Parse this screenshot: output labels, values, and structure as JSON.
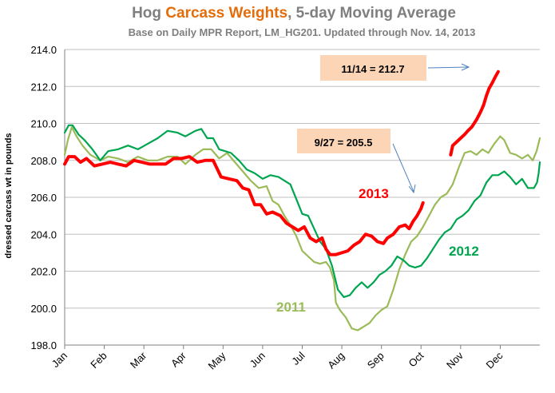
{
  "title": {
    "part1": "Hog ",
    "accent": "Carcass Weights",
    "part2": ", 5-day Moving Average",
    "accent_color": "#e46c0a"
  },
  "subtitle": "Base on Daily MPR Report, LM_HG201.  Updated through Nov. 14, 2013",
  "chart_data": {
    "type": "line",
    "title": "Hog Carcass Weights, 5-day Moving Average",
    "subtitle": "Base on Daily MPR Report, LM_HG201.  Updated through Nov. 14, 2013",
    "xlabel": "",
    "ylabel": "dressed carcass  wt in pounds",
    "ylim": [
      198.0,
      214.0
    ],
    "xlim": [
      0,
      12
    ],
    "grid": true,
    "yticks": [
      "214.0",
      "212.0",
      "210.0",
      "208.0",
      "206.0",
      "204.0",
      "202.0",
      "200.0",
      "198.0"
    ],
    "xticks": [
      "Jan",
      "Feb",
      "Mar",
      "Apr",
      "May",
      "Jun",
      "Jul",
      "Aug",
      "Sep",
      "Oct",
      "Nov",
      "Dec"
    ],
    "series": [
      {
        "name": "2011",
        "color": "#9bbb59",
        "points": [
          [
            0.0,
            208.3
          ],
          [
            0.08,
            209.1
          ],
          [
            0.18,
            209.8
          ],
          [
            0.3,
            209.3
          ],
          [
            0.45,
            208.8
          ],
          [
            0.65,
            208.3
          ],
          [
            0.9,
            208.0
          ],
          [
            1.1,
            208.2
          ],
          [
            1.35,
            208.1
          ],
          [
            1.6,
            207.9
          ],
          [
            1.85,
            208.2
          ],
          [
            2.1,
            208.0
          ],
          [
            2.35,
            208.0
          ],
          [
            2.6,
            208.2
          ],
          [
            2.85,
            208.2
          ],
          [
            3.05,
            207.8
          ],
          [
            3.3,
            208.3
          ],
          [
            3.5,
            208.6
          ],
          [
            3.7,
            208.6
          ],
          [
            3.9,
            208.1
          ],
          [
            4.1,
            208.4
          ],
          [
            4.3,
            207.9
          ],
          [
            4.5,
            207.4
          ],
          [
            4.7,
            206.9
          ],
          [
            4.9,
            206.5
          ],
          [
            5.1,
            206.6
          ],
          [
            5.25,
            205.8
          ],
          [
            5.4,
            205.6
          ],
          [
            5.55,
            205.0
          ],
          [
            5.7,
            204.5
          ],
          [
            5.85,
            203.9
          ],
          [
            6.0,
            203.1
          ],
          [
            6.15,
            202.8
          ],
          [
            6.3,
            202.5
          ],
          [
            6.45,
            202.4
          ],
          [
            6.6,
            202.5
          ],
          [
            6.7,
            202.2
          ],
          [
            6.8,
            201.5
          ],
          [
            6.85,
            200.3
          ],
          [
            6.95,
            199.9
          ],
          [
            7.1,
            199.5
          ],
          [
            7.25,
            198.9
          ],
          [
            7.4,
            198.8
          ],
          [
            7.55,
            199.0
          ],
          [
            7.7,
            199.2
          ],
          [
            7.85,
            199.6
          ],
          [
            8.0,
            199.9
          ],
          [
            8.15,
            200.1
          ],
          [
            8.3,
            201.0
          ],
          [
            8.45,
            202.1
          ],
          [
            8.6,
            202.9
          ],
          [
            8.75,
            203.6
          ],
          [
            8.9,
            203.9
          ],
          [
            9.05,
            204.4
          ],
          [
            9.2,
            205.0
          ],
          [
            9.35,
            205.6
          ],
          [
            9.5,
            206.0
          ],
          [
            9.65,
            206.2
          ],
          [
            9.8,
            206.7
          ],
          [
            9.95,
            207.6
          ],
          [
            10.1,
            208.4
          ],
          [
            10.25,
            208.5
          ],
          [
            10.4,
            208.3
          ],
          [
            10.55,
            208.6
          ],
          [
            10.7,
            208.4
          ],
          [
            10.85,
            208.9
          ],
          [
            11.0,
            209.3
          ],
          [
            11.1,
            209.1
          ],
          [
            11.25,
            208.4
          ],
          [
            11.4,
            208.3
          ],
          [
            11.55,
            208.1
          ],
          [
            11.7,
            208.3
          ],
          [
            11.82,
            208.0
          ],
          [
            11.92,
            208.5
          ],
          [
            12.0,
            209.2
          ]
        ]
      },
      {
        "name": "2012",
        "color": "#00a550",
        "points": [
          [
            0.0,
            209.5
          ],
          [
            0.1,
            209.9
          ],
          [
            0.2,
            209.9
          ],
          [
            0.35,
            209.4
          ],
          [
            0.5,
            209.1
          ],
          [
            0.7,
            208.6
          ],
          [
            0.9,
            208.0
          ],
          [
            1.1,
            208.5
          ],
          [
            1.35,
            208.6
          ],
          [
            1.6,
            208.8
          ],
          [
            1.85,
            208.6
          ],
          [
            2.1,
            208.9
          ],
          [
            2.35,
            209.2
          ],
          [
            2.6,
            209.6
          ],
          [
            2.85,
            209.5
          ],
          [
            3.05,
            209.3
          ],
          [
            3.3,
            209.6
          ],
          [
            3.45,
            209.7
          ],
          [
            3.6,
            209.2
          ],
          [
            3.75,
            209.2
          ],
          [
            3.9,
            208.6
          ],
          [
            4.05,
            208.5
          ],
          [
            4.2,
            208.4
          ],
          [
            4.4,
            208.0
          ],
          [
            4.6,
            207.5
          ],
          [
            4.8,
            207.3
          ],
          [
            5.0,
            207.0
          ],
          [
            5.2,
            207.2
          ],
          [
            5.4,
            207.1
          ],
          [
            5.55,
            206.9
          ],
          [
            5.7,
            206.7
          ],
          [
            5.85,
            205.9
          ],
          [
            6.0,
            205.1
          ],
          [
            6.15,
            205.0
          ],
          [
            6.3,
            204.3
          ],
          [
            6.45,
            203.6
          ],
          [
            6.6,
            203.2
          ],
          [
            6.75,
            202.3
          ],
          [
            6.9,
            201.0
          ],
          [
            7.05,
            200.6
          ],
          [
            7.2,
            200.7
          ],
          [
            7.35,
            201.1
          ],
          [
            7.5,
            201.4
          ],
          [
            7.65,
            201.1
          ],
          [
            7.8,
            201.4
          ],
          [
            7.95,
            201.8
          ],
          [
            8.1,
            202.0
          ],
          [
            8.25,
            202.3
          ],
          [
            8.4,
            202.8
          ],
          [
            8.55,
            202.6
          ],
          [
            8.7,
            202.3
          ],
          [
            8.85,
            202.2
          ],
          [
            9.0,
            202.3
          ],
          [
            9.15,
            202.7
          ],
          [
            9.3,
            203.2
          ],
          [
            9.45,
            203.7
          ],
          [
            9.6,
            204.1
          ],
          [
            9.75,
            204.3
          ],
          [
            9.9,
            204.8
          ],
          [
            10.05,
            205.0
          ],
          [
            10.2,
            205.3
          ],
          [
            10.35,
            205.8
          ],
          [
            10.5,
            206.1
          ],
          [
            10.65,
            206.8
          ],
          [
            10.8,
            207.2
          ],
          [
            10.95,
            207.2
          ],
          [
            11.1,
            207.4
          ],
          [
            11.25,
            207.1
          ],
          [
            11.4,
            206.7
          ],
          [
            11.55,
            207.0
          ],
          [
            11.7,
            206.5
          ],
          [
            11.85,
            206.5
          ],
          [
            11.93,
            206.8
          ],
          [
            11.97,
            207.3
          ],
          [
            12.0,
            207.9
          ]
        ]
      },
      {
        "name": "2013",
        "color": "#ff0000",
        "segments": [
          [
            [
              0.0,
              207.8
            ],
            [
              0.1,
              208.2
            ],
            [
              0.25,
              208.2
            ],
            [
              0.4,
              207.9
            ],
            [
              0.55,
              208.1
            ],
            [
              0.75,
              207.7
            ],
            [
              0.95,
              207.8
            ],
            [
              1.15,
              207.9
            ],
            [
              1.35,
              207.8
            ],
            [
              1.55,
              207.7
            ],
            [
              1.75,
              208.0
            ],
            [
              1.95,
              207.9
            ],
            [
              2.15,
              207.8
            ],
            [
              2.35,
              207.8
            ],
            [
              2.55,
              207.8
            ],
            [
              2.75,
              208.1
            ],
            [
              2.95,
              208.1
            ],
            [
              3.15,
              208.2
            ],
            [
              3.35,
              207.9
            ],
            [
              3.55,
              208.0
            ],
            [
              3.75,
              208.0
            ],
            [
              3.95,
              207.1
            ],
            [
              4.15,
              207.0
            ],
            [
              4.35,
              206.9
            ],
            [
              4.5,
              206.5
            ],
            [
              4.65,
              206.4
            ],
            [
              4.8,
              205.6
            ],
            [
              4.95,
              205.6
            ],
            [
              5.1,
              205.1
            ],
            [
              5.25,
              205.2
            ],
            [
              5.45,
              205.0
            ],
            [
              5.6,
              204.6
            ],
            [
              5.75,
              204.4
            ],
            [
              5.9,
              204.2
            ],
            [
              6.05,
              204.4
            ],
            [
              6.2,
              203.8
            ],
            [
              6.35,
              203.6
            ],
            [
              6.5,
              203.8
            ],
            [
              6.6,
              203.2
            ],
            [
              6.7,
              202.9
            ],
            [
              6.85,
              202.9
            ],
            [
              7.0,
              203.0
            ],
            [
              7.15,
              203.1
            ],
            [
              7.3,
              203.4
            ],
            [
              7.45,
              203.6
            ],
            [
              7.6,
              204.0
            ],
            [
              7.75,
              203.9
            ],
            [
              7.9,
              203.6
            ],
            [
              8.05,
              203.5
            ],
            [
              8.15,
              203.8
            ],
            [
              8.3,
              204.0
            ],
            [
              8.45,
              204.4
            ],
            [
              8.6,
              204.5
            ],
            [
              8.7,
              204.3
            ],
            [
              8.8,
              204.7
            ],
            [
              8.9,
              205.0
            ],
            [
              9.0,
              205.4
            ],
            [
              9.05,
              205.7
            ]
          ],
          [
            [
              9.75,
              208.3
            ],
            [
              9.8,
              208.8
            ],
            [
              9.9,
              209.0
            ],
            [
              10.0,
              209.2
            ],
            [
              10.1,
              209.4
            ],
            [
              10.18,
              209.6
            ],
            [
              10.28,
              209.8
            ],
            [
              10.4,
              210.2
            ],
            [
              10.5,
              210.6
            ],
            [
              10.58,
              211.0
            ],
            [
              10.65,
              211.5
            ],
            [
              10.72,
              211.9
            ],
            [
              10.8,
              212.2
            ],
            [
              10.87,
              212.5
            ],
            [
              10.95,
              212.8
            ]
          ]
        ]
      }
    ],
    "annotations": [
      {
        "text": "11/14 = 212.7",
        "box_fill": "#fbd5b5"
      },
      {
        "text": "9/27 = 205.5",
        "box_fill": "#fbd5b5"
      }
    ],
    "series_labels": [
      {
        "text": "2013",
        "color": "#ff0000"
      },
      {
        "text": "2012",
        "color": "#00a550"
      },
      {
        "text": "2011",
        "color": "#9bbb59"
      }
    ]
  }
}
